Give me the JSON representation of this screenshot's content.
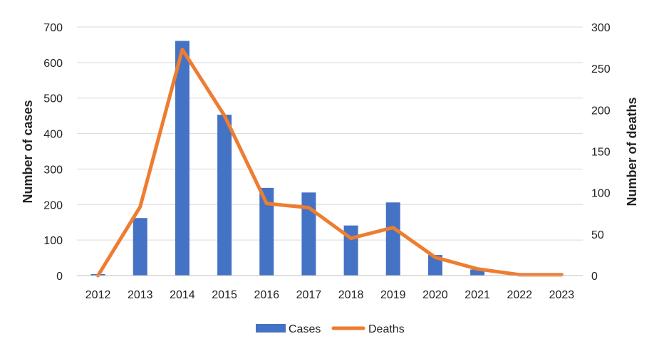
{
  "chart_data": {
    "type": "bar",
    "categories": [
      "2012",
      "2013",
      "2014",
      "2015",
      "2016",
      "2017",
      "2018",
      "2019",
      "2020",
      "2021",
      "2022",
      "2023"
    ],
    "series": [
      {
        "name": "Cases",
        "type": "bar",
        "axis": "left",
        "color": "#4472C4",
        "values": [
          4,
          162,
          661,
          453,
          247,
          234,
          141,
          206,
          58,
          17,
          0,
          0
        ]
      },
      {
        "name": "Deaths",
        "type": "line",
        "axis": "right",
        "color": "#ED7D31",
        "values": [
          0,
          83,
          273,
          193,
          87,
          82,
          45,
          58,
          22,
          8,
          1,
          1
        ]
      }
    ],
    "xlabel": "",
    "ylabel": "Number of cases",
    "y2label": "Number of deaths",
    "ylim": [
      0,
      700
    ],
    "y2lim": [
      0,
      300
    ],
    "yticks": [
      0,
      100,
      200,
      300,
      400,
      500,
      600,
      700
    ],
    "y2ticks": [
      0,
      50,
      100,
      150,
      200,
      250,
      300
    ],
    "grid": true,
    "legend": "bottom"
  }
}
